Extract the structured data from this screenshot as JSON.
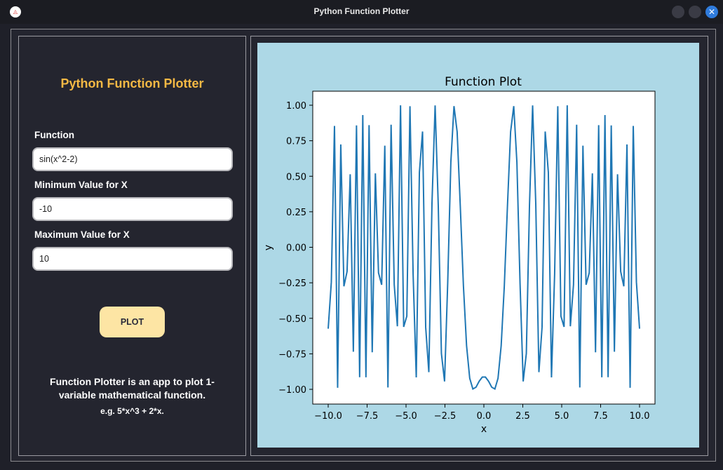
{
  "window": {
    "title": "Python Function Plotter",
    "close_glyph": "✕"
  },
  "sidebar": {
    "heading": "Python Function Plotter",
    "function_label": "Function",
    "function_value": "sin(x^2-2)",
    "min_label": "Minimum Value for X",
    "min_value": "-10",
    "max_label": "Maximum Value for X",
    "max_value": "10",
    "plot_button_label": "PLOT",
    "description_line1": "Function Plotter is an app to plot 1-",
    "description_line2": "variable mathematical function.",
    "example": "e.g.  5*x^3 + 2*x."
  },
  "colors": {
    "accent": "#f5b944",
    "button_bg": "#fde5a4",
    "plot_bg": "#add8e6",
    "line": "#1f77b4"
  },
  "chart_data": {
    "type": "line",
    "title": "Function Plot",
    "xlabel": "x",
    "ylabel": "y",
    "function": "sin(x^2-2)",
    "xlim": [
      -10,
      10
    ],
    "ylim": [
      -1,
      1
    ],
    "sample_count": 100,
    "xticks": [
      -10.0,
      -7.5,
      -5.0,
      -2.5,
      0.0,
      2.5,
      5.0,
      7.5,
      10.0
    ],
    "xtick_labels": [
      "−10.0",
      "−7.5",
      "−5.0",
      "−2.5",
      "0.0",
      "2.5",
      "5.0",
      "7.5",
      "10.0"
    ],
    "yticks": [
      1.0,
      0.75,
      0.5,
      0.25,
      0.0,
      -0.25,
      -0.5,
      -0.75,
      -1.0
    ],
    "ytick_labels": [
      "1.00",
      "0.75",
      "0.50",
      "0.25",
      "0.00",
      "−0.25",
      "−0.50",
      "−0.75",
      "−1.00"
    ],
    "grid": false
  }
}
